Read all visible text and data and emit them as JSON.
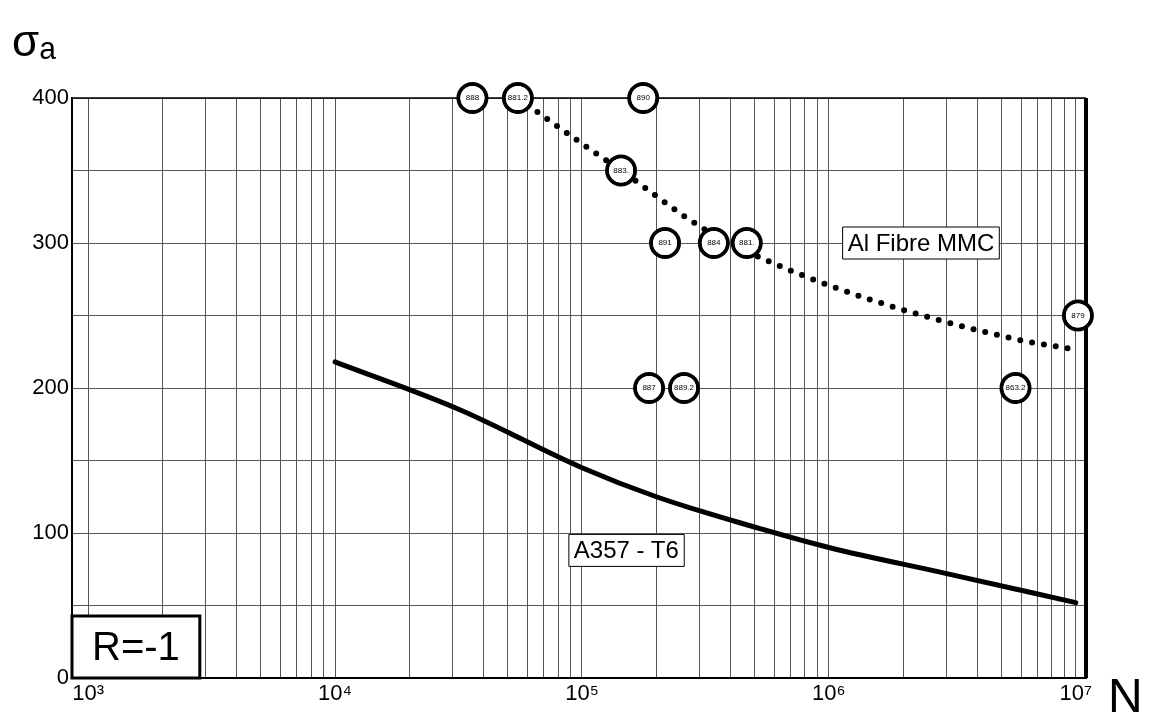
{
  "chart_data": {
    "type": "line",
    "ylabel": "σₐ",
    "xlabel": "N",
    "log": "x",
    "grid": true,
    "legend": false,
    "xlim": [
      860,
      11000000
    ],
    "xticks": [
      {
        "value": 1000,
        "label": "10³"
      },
      {
        "value": 2000,
        "label": null
      },
      {
        "value": 3000,
        "label": null
      },
      {
        "value": 4000,
        "label": null
      },
      {
        "value": 5000,
        "label": null
      },
      {
        "value": 6000,
        "label": null
      },
      {
        "value": 7000,
        "label": null
      },
      {
        "value": 8000,
        "label": null
      },
      {
        "value": 9000,
        "label": null
      },
      {
        "value": 10000,
        "label": "10⁴"
      },
      {
        "value": 20000,
        "label": null
      },
      {
        "value": 30000,
        "label": null
      },
      {
        "value": 40000,
        "label": null
      },
      {
        "value": 50000,
        "label": null
      },
      {
        "value": 60000,
        "label": null
      },
      {
        "value": 70000,
        "label": null
      },
      {
        "value": 80000,
        "label": null
      },
      {
        "value": 90000,
        "label": null
      },
      {
        "value": 100000,
        "label": "10⁵"
      },
      {
        "value": 200000,
        "label": null
      },
      {
        "value": 300000,
        "label": null
      },
      {
        "value": 400000,
        "label": null
      },
      {
        "value": 500000,
        "label": null
      },
      {
        "value": 600000,
        "label": null
      },
      {
        "value": 700000,
        "label": null
      },
      {
        "value": 800000,
        "label": null
      },
      {
        "value": 900000,
        "label": null
      },
      {
        "value": 1000000,
        "label": "10⁶"
      },
      {
        "value": 2000000,
        "label": null
      },
      {
        "value": 3000000,
        "label": null
      },
      {
        "value": 4000000,
        "label": null
      },
      {
        "value": 5000000,
        "label": null
      },
      {
        "value": 6000000,
        "label": null
      },
      {
        "value": 7000000,
        "label": null
      },
      {
        "value": 8000000,
        "label": null
      },
      {
        "value": 9000000,
        "label": null
      },
      {
        "value": 10000000,
        "label": "10⁷"
      }
    ],
    "ylim": [
      0,
      400
    ],
    "yticks": [
      0,
      {
        "value": 50,
        "label": null
      },
      100,
      {
        "value": 150,
        "label": null
      },
      200,
      {
        "value": 250,
        "label": null
      },
      300,
      {
        "value": 350,
        "label": null
      },
      400
    ],
    "series": [
      {
        "name": "Al Fibre MMC",
        "line_style": "dotted",
        "marker": "none",
        "color": "#000000",
        "x": [
          55000,
          105000,
          144000,
          310000,
          560000,
          1470000,
          5600000,
          9500000
        ],
        "values": [
          400,
          366,
          350,
          310,
          288,
          261,
          234,
          227
        ]
      },
      {
        "name": "A357 - T6",
        "line_style": "solid",
        "marker": "none",
        "color": "#000000",
        "x": [
          10000,
          32000,
          100000,
          200000,
          480000,
          1000000,
          3000000,
          10000000
        ],
        "values": [
          218,
          185,
          145,
          125,
          105,
          90,
          72,
          52
        ]
      },
      {
        "type": "scatter",
        "marker": "circle",
        "color": "#000000",
        "x": [
          36000,
          55000,
          177000,
          144000,
          217000,
          342000,
          465000,
          187000,
          259000,
          5700000,
          10200000
        ],
        "values": [
          400,
          400,
          400,
          350,
          300,
          300,
          300,
          200,
          200,
          200,
          250
        ]
      }
    ],
    "annotations": [
      "R=-1",
      {
        "text": "888",
        "x": 36000,
        "y": 400
      },
      {
        "text": "881.2",
        "x": 55000,
        "y": 400
      },
      {
        "text": "890",
        "x": 177000,
        "y": 400
      },
      {
        "text": "883.",
        "x": 144000,
        "y": 350
      },
      {
        "text": "891",
        "x": 217000,
        "y": 300
      },
      {
        "text": "884",
        "x": 342000,
        "y": 300
      },
      {
        "text": "881.",
        "x": 465000,
        "y": 300
      },
      {
        "text": "887",
        "x": 187000,
        "y": 200
      },
      {
        "text": "889.2",
        "x": 259000,
        "y": 200
      },
      {
        "text": "863.2",
        "x": 5700000,
        "y": 200
      },
      {
        "text": "879",
        "x": 10200000,
        "y": 250
      }
    ]
  }
}
